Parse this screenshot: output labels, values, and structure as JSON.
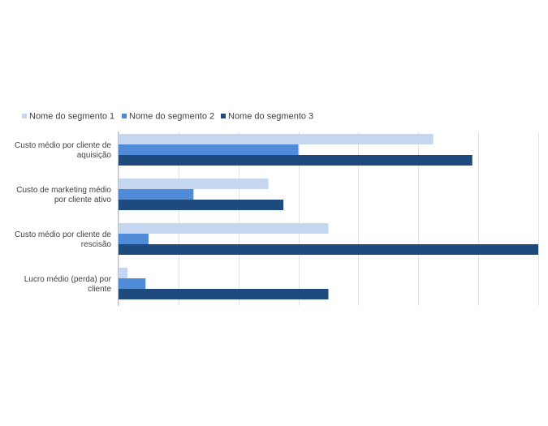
{
  "chart_data": {
    "type": "bar",
    "orientation": "horizontal",
    "categories": [
      [
        "Custo médio por cliente de",
        "aquisição"
      ],
      [
        "Custo de marketing médio",
        "por cliente ativo"
      ],
      [
        "Custo médio por cliente de",
        "rescisão"
      ],
      [
        "Lucro médio (perda) por",
        "cliente"
      ]
    ],
    "series": [
      {
        "name": "Nome do segmento 1",
        "color": "#c5d7f0",
        "values": [
          105,
          50,
          70,
          3
        ]
      },
      {
        "name": "Nome do segmento 2",
        "color": "#4f8bd6",
        "values": [
          60,
          25,
          10,
          9
        ]
      },
      {
        "name": "Nome do segmento 3",
        "color": "#1f4a7e",
        "values": [
          118,
          55,
          140,
          70
        ]
      }
    ],
    "xlim": [
      0,
      140
    ],
    "grid_step": 20,
    "grid": true,
    "legend_position": "top-left",
    "title": "",
    "xlabel": "",
    "ylabel": ""
  },
  "style": {
    "grid_color": "#e3e3e3",
    "axis_color": "#bfbfbf",
    "text_color": "#404040"
  }
}
